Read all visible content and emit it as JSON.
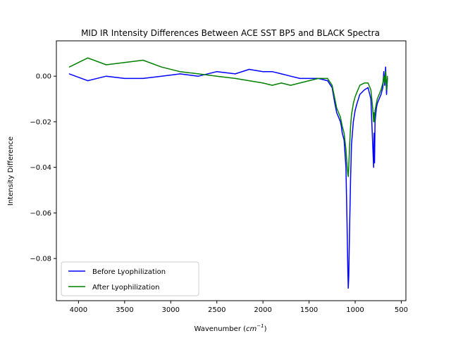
{
  "chart_data": {
    "type": "line",
    "title": "MID IR Intensity Differences Between ACE SST BP5 and BLACK Spectra",
    "xlabel_base": "Wavenumber (",
    "xlabel_unit": "cm",
    "xlabel_exp": "−1",
    "xlabel_close": ")",
    "ylabel": "Intensity Difference",
    "xlim": [
      4240,
      450
    ],
    "ylim": [
      -0.0985,
      0.0155
    ],
    "x_inverted": true,
    "grid": false,
    "legend_position": "lower-left",
    "xticks": [
      4000,
      3500,
      3000,
      2500,
      2000,
      1500,
      1000,
      500
    ],
    "xtick_labels": [
      "4000",
      "3500",
      "3000",
      "2500",
      "2000",
      "1500",
      "1000",
      "500"
    ],
    "yticks": [
      0.0,
      -0.02,
      -0.04,
      -0.06,
      -0.08
    ],
    "ytick_labels": [
      "0.00",
      "−0.02",
      "−0.04",
      "−0.06",
      "−0.08"
    ],
    "series": [
      {
        "name": "Before Lyophilization",
        "color": "#0000ff",
        "x": [
          4100,
          3900,
          3700,
          3500,
          3300,
          3100,
          2900,
          2700,
          2500,
          2300,
          2150,
          2000,
          1900,
          1800,
          1700,
          1600,
          1500,
          1400,
          1300,
          1250,
          1220,
          1200,
          1180,
          1160,
          1150,
          1140,
          1120,
          1100,
          1090,
          1080,
          1075,
          1070,
          1060,
          1050,
          1040,
          1020,
          1000,
          980,
          950,
          900,
          860,
          830,
          810,
          800,
          795,
          790,
          785,
          780,
          770,
          760,
          740,
          720,
          700,
          690,
          680,
          670,
          660,
          650
        ],
        "y": [
          0.001,
          -0.002,
          0.0,
          -0.001,
          -0.001,
          0.0,
          0.001,
          0.0,
          0.002,
          0.001,
          0.003,
          0.002,
          0.002,
          0.001,
          0.0,
          -0.001,
          -0.001,
          -0.001,
          -0.002,
          -0.005,
          -0.012,
          -0.016,
          -0.018,
          -0.02,
          -0.022,
          -0.025,
          -0.028,
          -0.04,
          -0.06,
          -0.085,
          -0.093,
          -0.088,
          -0.065,
          -0.045,
          -0.03,
          -0.02,
          -0.015,
          -0.012,
          -0.008,
          -0.006,
          -0.005,
          -0.01,
          -0.03,
          -0.04,
          -0.025,
          -0.038,
          -0.02,
          -0.018,
          -0.014,
          -0.012,
          -0.01,
          -0.008,
          -0.005,
          0.002,
          -0.004,
          0.004,
          -0.008,
          -0.001
        ]
      },
      {
        "name": "After Lyophilization",
        "color": "#008000",
        "x": [
          4100,
          3900,
          3700,
          3500,
          3300,
          3100,
          2900,
          2700,
          2500,
          2300,
          2150,
          2000,
          1900,
          1800,
          1700,
          1600,
          1500,
          1400,
          1300,
          1250,
          1220,
          1200,
          1180,
          1160,
          1150,
          1140,
          1120,
          1100,
          1090,
          1080,
          1075,
          1070,
          1060,
          1050,
          1040,
          1020,
          1000,
          980,
          950,
          900,
          860,
          830,
          810,
          800,
          795,
          790,
          785,
          780,
          770,
          760,
          740,
          720,
          700,
          690,
          680,
          670,
          660,
          650
        ],
        "y": [
          0.004,
          0.008,
          0.005,
          0.006,
          0.007,
          0.004,
          0.002,
          0.001,
          0.0,
          -0.001,
          -0.002,
          -0.003,
          -0.004,
          -0.003,
          -0.004,
          -0.003,
          -0.002,
          -0.001,
          -0.001,
          -0.004,
          -0.01,
          -0.014,
          -0.016,
          -0.018,
          -0.02,
          -0.022,
          -0.025,
          -0.032,
          -0.038,
          -0.043,
          -0.044,
          -0.04,
          -0.03,
          -0.022,
          -0.017,
          -0.012,
          -0.009,
          -0.007,
          -0.004,
          -0.003,
          -0.003,
          -0.006,
          -0.014,
          -0.02,
          -0.016,
          -0.02,
          -0.015,
          -0.014,
          -0.012,
          -0.01,
          -0.008,
          -0.006,
          -0.003,
          0.0,
          -0.003,
          0.002,
          -0.006,
          0.0
        ]
      }
    ]
  }
}
